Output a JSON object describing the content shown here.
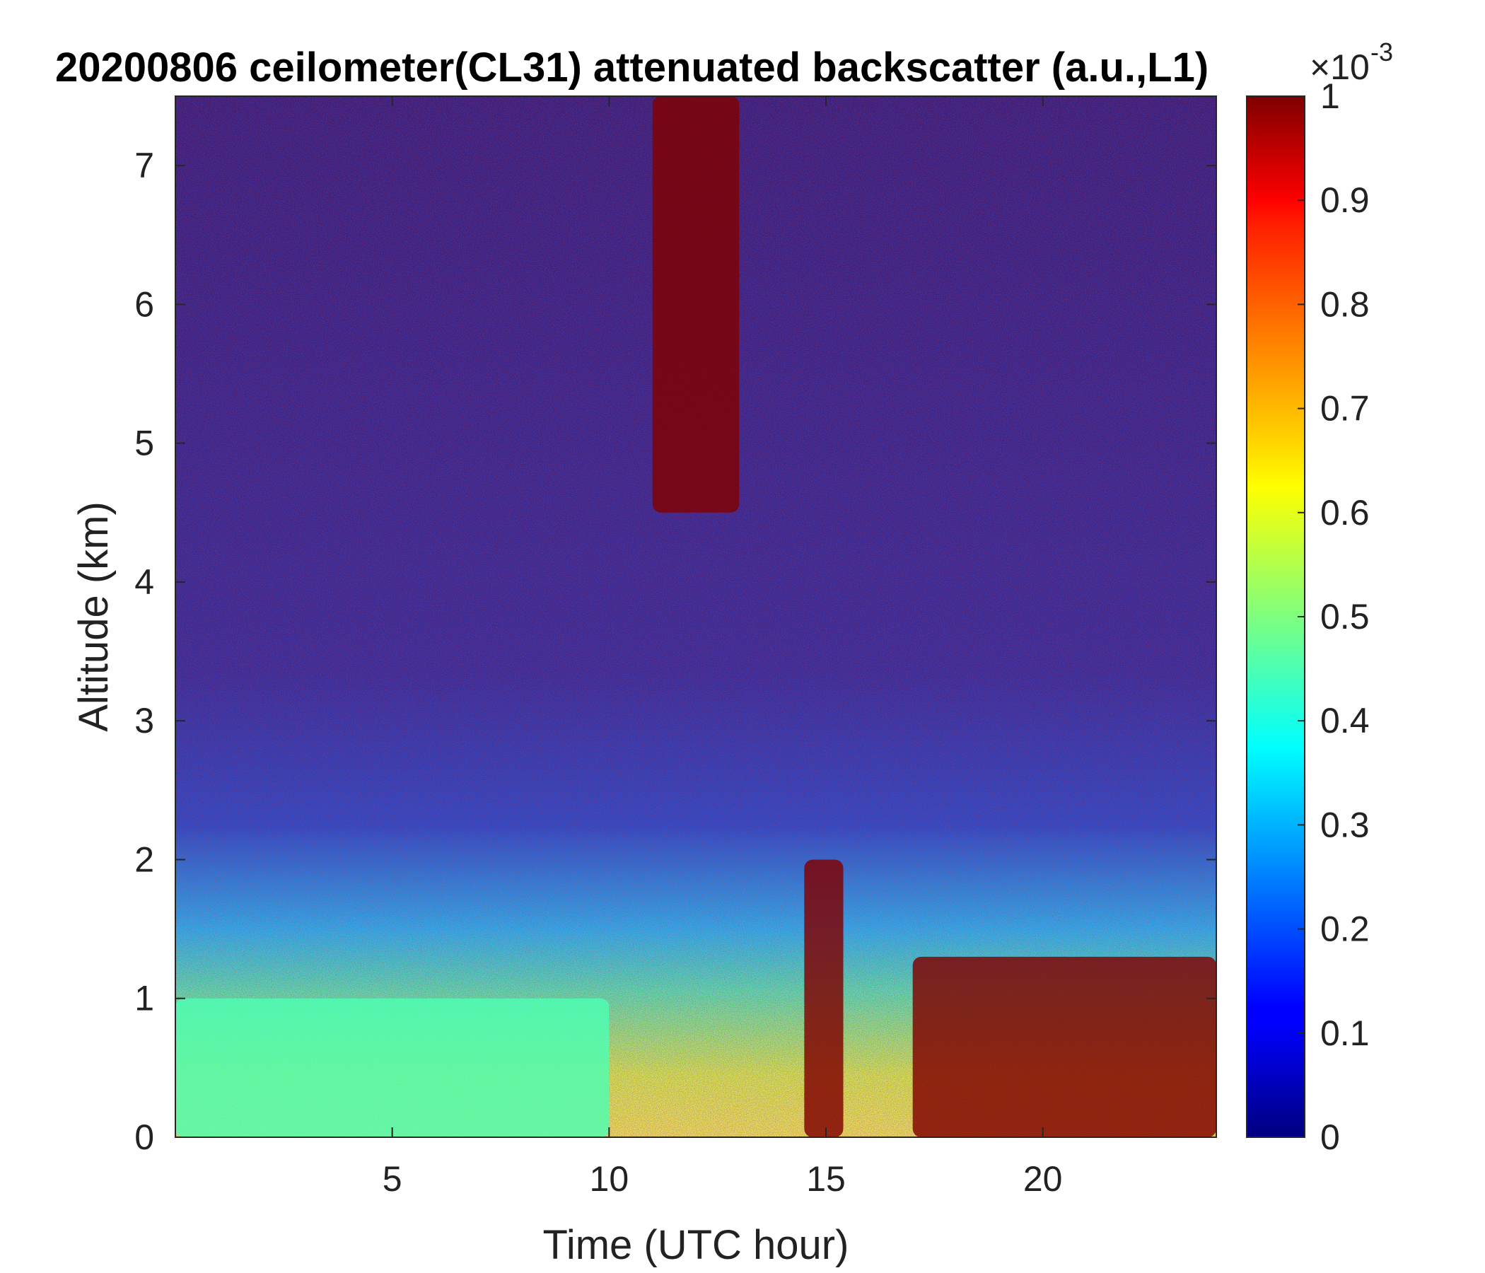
{
  "chart_data": {
    "type": "heatmap",
    "title": "20200806 ceilometer(CL31) attenuated backscatter (a.u.,L1)",
    "xlabel": "Time (UTC hour)",
    "ylabel": "Altitude (km)",
    "xlim": [
      0,
      24
    ],
    "ylim": [
      0,
      7.5
    ],
    "xticks": [
      "5",
      "10",
      "15",
      "20"
    ],
    "xtick_values": [
      5,
      10,
      15,
      20
    ],
    "yticks": [
      "0",
      "1",
      "2",
      "3",
      "4",
      "5",
      "6",
      "7"
    ],
    "ytick_values": [
      0,
      1,
      2,
      3,
      4,
      5,
      6,
      7
    ],
    "colorbar": {
      "label_multiplier": "×10",
      "label_exponent": "-3",
      "range": [
        0,
        1
      ],
      "ticks": [
        "0",
        "0.1",
        "0.2",
        "0.3",
        "0.4",
        "0.5",
        "0.6",
        "0.7",
        "0.8",
        "0.9",
        "1"
      ],
      "tick_values": [
        0,
        0.1,
        0.2,
        0.3,
        0.4,
        0.5,
        0.6,
        0.7,
        0.8,
        0.9,
        1
      ],
      "colormap": "jet"
    },
    "features": [
      {
        "desc": "aerosol layer",
        "time_range": [
          0,
          10
        ],
        "altitude_km": [
          0,
          1.0
        ],
        "value_approx": 0.45
      },
      {
        "desc": "dense cloud column",
        "time_range": [
          14.5,
          15.4
        ],
        "altitude_km": [
          0,
          2.0
        ],
        "value_approx": 1.0
      },
      {
        "desc": "boundary-layer clouds",
        "time_range": [
          17,
          24
        ],
        "altitude_km": [
          0,
          1.3
        ],
        "value_approx": 1.0
      },
      {
        "desc": "high thin cloud streaks",
        "time_range": [
          11,
          13
        ],
        "altitude_km": [
          4.5,
          7.5
        ],
        "value_approx": 1.0
      }
    ],
    "grid": false
  }
}
